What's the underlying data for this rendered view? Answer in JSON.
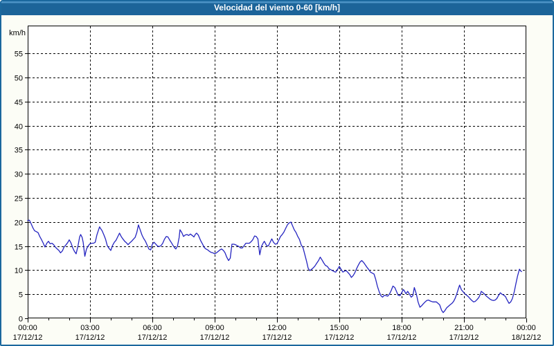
{
  "window": {
    "title": "Velocidad del viento 0-60 [km/h]"
  },
  "colors": {
    "titlebar_bg": "#1c6499",
    "titlebar_highlight": "#4c93c6",
    "window_border": "#1b689e",
    "window_bg": "#fcfdf6",
    "plot_bg": "#ffffff",
    "axis_and_grid": "#000000",
    "series_line": "#2424c0",
    "title_text": "#ffffff"
  },
  "chart_data": {
    "type": "line",
    "title": "Velocidad del viento 0-60 [km/h]",
    "ylabel": "km/h",
    "xlabel": "",
    "ylim": [
      0,
      60.8
    ],
    "xlim_hours": [
      0,
      24
    ],
    "y_ticks": [
      0,
      5,
      10,
      15,
      20,
      25,
      30,
      35,
      40,
      45,
      50,
      55
    ],
    "x_ticks": [
      {
        "hour": 0,
        "time": "00:00",
        "date": "17/12/12"
      },
      {
        "hour": 3,
        "time": "03:00",
        "date": "17/12/12"
      },
      {
        "hour": 6,
        "time": "06:00",
        "date": "17/12/12"
      },
      {
        "hour": 9,
        "time": "09:00",
        "date": "17/12/12"
      },
      {
        "hour": 12,
        "time": "12:00",
        "date": "17/12/12"
      },
      {
        "hour": 15,
        "time": "15:00",
        "date": "17/12/12"
      },
      {
        "hour": 18,
        "time": "18:00",
        "date": "17/12/12"
      },
      {
        "hour": 21,
        "time": "21:00",
        "date": "17/12/12"
      },
      {
        "hour": 24,
        "time": "00:00",
        "date": "18/12/12"
      }
    ],
    "minor_x_tick_every_hours": 1,
    "grid": "dashed",
    "legend": "none",
    "series": [
      {
        "name": "velocidad_del_viento_kmh",
        "color": "#2424c0",
        "points": [
          [
            0.0,
            20.3
          ],
          [
            0.08,
            20.4
          ],
          [
            0.17,
            19.6
          ],
          [
            0.25,
            18.8
          ],
          [
            0.33,
            18.2
          ],
          [
            0.42,
            18.0
          ],
          [
            0.5,
            17.8
          ],
          [
            0.58,
            17.0
          ],
          [
            0.67,
            16.3
          ],
          [
            0.75,
            15.6
          ],
          [
            0.83,
            14.8
          ],
          [
            0.92,
            15.6
          ],
          [
            1.0,
            16.0
          ],
          [
            1.08,
            15.5
          ],
          [
            1.17,
            15.6
          ],
          [
            1.25,
            15.3
          ],
          [
            1.33,
            14.8
          ],
          [
            1.42,
            14.4
          ],
          [
            1.5,
            14.1
          ],
          [
            1.58,
            13.6
          ],
          [
            1.67,
            14.0
          ],
          [
            1.75,
            14.8
          ],
          [
            1.83,
            15.2
          ],
          [
            1.92,
            15.7
          ],
          [
            2.0,
            16.3
          ],
          [
            2.08,
            15.7
          ],
          [
            2.17,
            14.6
          ],
          [
            2.25,
            13.9
          ],
          [
            2.33,
            13.4
          ],
          [
            2.42,
            15.0
          ],
          [
            2.5,
            16.9
          ],
          [
            2.55,
            17.4
          ],
          [
            2.62,
            16.8
          ],
          [
            2.67,
            15.8
          ],
          [
            2.75,
            12.9
          ],
          [
            2.83,
            14.4
          ],
          [
            2.92,
            15.1
          ],
          [
            3.0,
            15.5
          ],
          [
            3.08,
            15.6
          ],
          [
            3.17,
            15.6
          ],
          [
            3.25,
            15.8
          ],
          [
            3.33,
            17.3
          ],
          [
            3.42,
            18.5
          ],
          [
            3.46,
            19.0
          ],
          [
            3.5,
            18.7
          ],
          [
            3.58,
            18.2
          ],
          [
            3.67,
            17.3
          ],
          [
            3.75,
            16.4
          ],
          [
            3.83,
            15.1
          ],
          [
            3.92,
            14.5
          ],
          [
            4.0,
            14.1
          ],
          [
            4.08,
            15.1
          ],
          [
            4.17,
            15.8
          ],
          [
            4.25,
            16.2
          ],
          [
            4.33,
            16.9
          ],
          [
            4.42,
            17.7
          ],
          [
            4.5,
            17.0
          ],
          [
            4.58,
            16.5
          ],
          [
            4.67,
            16.0
          ],
          [
            4.75,
            15.7
          ],
          [
            4.83,
            15.3
          ],
          [
            4.92,
            15.7
          ],
          [
            5.0,
            16.0
          ],
          [
            5.08,
            16.4
          ],
          [
            5.17,
            16.8
          ],
          [
            5.25,
            17.8
          ],
          [
            5.33,
            19.4
          ],
          [
            5.42,
            18.3
          ],
          [
            5.5,
            17.3
          ],
          [
            5.58,
            16.6
          ],
          [
            5.67,
            16.0
          ],
          [
            5.75,
            15.2
          ],
          [
            5.83,
            14.4
          ],
          [
            5.92,
            14.2
          ],
          [
            6.0,
            15.4
          ],
          [
            6.08,
            15.8
          ],
          [
            6.17,
            15.4
          ],
          [
            6.25,
            15.0
          ],
          [
            6.33,
            14.9
          ],
          [
            6.42,
            15.1
          ],
          [
            6.5,
            15.6
          ],
          [
            6.58,
            16.4
          ],
          [
            6.67,
            17.0
          ],
          [
            6.75,
            16.9
          ],
          [
            6.83,
            16.3
          ],
          [
            6.92,
            15.7
          ],
          [
            7.0,
            15.1
          ],
          [
            7.08,
            14.6
          ],
          [
            7.13,
            14.4
          ],
          [
            7.21,
            15.0
          ],
          [
            7.29,
            16.8
          ],
          [
            7.33,
            18.4
          ],
          [
            7.42,
            17.8
          ],
          [
            7.5,
            17.0
          ],
          [
            7.58,
            17.3
          ],
          [
            7.67,
            17.4
          ],
          [
            7.75,
            17.2
          ],
          [
            7.83,
            17.5
          ],
          [
            7.92,
            17.2
          ],
          [
            8.0,
            16.9
          ],
          [
            8.08,
            17.5
          ],
          [
            8.13,
            17.7
          ],
          [
            8.21,
            17.3
          ],
          [
            8.33,
            16.1
          ],
          [
            8.42,
            15.4
          ],
          [
            8.5,
            14.7
          ],
          [
            8.58,
            14.4
          ],
          [
            8.67,
            14.2
          ],
          [
            8.75,
            13.9
          ],
          [
            8.83,
            13.7
          ],
          [
            8.92,
            13.6
          ],
          [
            9.0,
            13.4
          ],
          [
            9.08,
            13.6
          ],
          [
            9.17,
            13.9
          ],
          [
            9.25,
            14.2
          ],
          [
            9.33,
            14.4
          ],
          [
            9.42,
            14.1
          ],
          [
            9.5,
            13.6
          ],
          [
            9.58,
            12.7
          ],
          [
            9.67,
            12.0
          ],
          [
            9.75,
            12.5
          ],
          [
            9.83,
            15.4
          ],
          [
            9.92,
            15.4
          ],
          [
            10.0,
            15.3
          ],
          [
            10.08,
            15.1
          ],
          [
            10.17,
            14.9
          ],
          [
            10.25,
            14.6
          ],
          [
            10.33,
            14.6
          ],
          [
            10.42,
            15.1
          ],
          [
            10.5,
            15.6
          ],
          [
            10.58,
            15.6
          ],
          [
            10.67,
            15.6
          ],
          [
            10.75,
            15.9
          ],
          [
            10.83,
            16.3
          ],
          [
            10.92,
            17.1
          ],
          [
            11.0,
            17.0
          ],
          [
            11.08,
            16.5
          ],
          [
            11.17,
            13.2
          ],
          [
            11.25,
            14.9
          ],
          [
            11.33,
            15.6
          ],
          [
            11.39,
            16.0
          ],
          [
            11.5,
            15.1
          ],
          [
            11.58,
            15.0
          ],
          [
            11.67,
            15.8
          ],
          [
            11.75,
            16.5
          ],
          [
            11.83,
            15.8
          ],
          [
            11.92,
            15.4
          ],
          [
            12.0,
            15.5
          ],
          [
            12.08,
            16.2
          ],
          [
            12.17,
            17.0
          ],
          [
            12.25,
            17.4
          ],
          [
            12.33,
            17.9
          ],
          [
            12.42,
            18.7
          ],
          [
            12.5,
            19.4
          ],
          [
            12.58,
            19.8
          ],
          [
            12.67,
            20.0
          ],
          [
            12.75,
            19.2
          ],
          [
            12.83,
            18.4
          ],
          [
            12.92,
            17.8
          ],
          [
            13.0,
            17.0
          ],
          [
            13.08,
            16.4
          ],
          [
            13.17,
            15.2
          ],
          [
            13.25,
            14.7
          ],
          [
            13.33,
            13.4
          ],
          [
            13.42,
            11.9
          ],
          [
            13.5,
            10.4
          ],
          [
            13.58,
            9.9
          ],
          [
            13.67,
            10.2
          ],
          [
            13.75,
            10.5
          ],
          [
            13.83,
            10.9
          ],
          [
            13.92,
            11.5
          ],
          [
            14.0,
            12.0
          ],
          [
            14.08,
            12.7
          ],
          [
            14.17,
            12.1
          ],
          [
            14.25,
            11.5
          ],
          [
            14.33,
            11.0
          ],
          [
            14.42,
            10.8
          ],
          [
            14.5,
            10.3
          ],
          [
            14.58,
            10.1
          ],
          [
            14.67,
            9.9
          ],
          [
            14.75,
            9.7
          ],
          [
            14.83,
            9.6
          ],
          [
            14.92,
            10.2
          ],
          [
            15.0,
            10.8
          ],
          [
            15.08,
            10.2
          ],
          [
            15.17,
            9.6
          ],
          [
            15.25,
            9.8
          ],
          [
            15.33,
            9.9
          ],
          [
            15.42,
            9.5
          ],
          [
            15.5,
            9.1
          ],
          [
            15.58,
            8.5
          ],
          [
            15.67,
            8.9
          ],
          [
            15.75,
            9.5
          ],
          [
            15.83,
            10.3
          ],
          [
            15.92,
            11.1
          ],
          [
            16.0,
            11.7
          ],
          [
            16.08,
            12.0
          ],
          [
            16.17,
            11.6
          ],
          [
            16.25,
            11.1
          ],
          [
            16.33,
            10.6
          ],
          [
            16.42,
            10.1
          ],
          [
            16.5,
            9.6
          ],
          [
            16.58,
            9.4
          ],
          [
            16.67,
            9.2
          ],
          [
            16.75,
            8.1
          ],
          [
            16.83,
            6.7
          ],
          [
            16.92,
            5.5
          ],
          [
            17.0,
            4.7
          ],
          [
            17.08,
            4.4
          ],
          [
            17.17,
            4.8
          ],
          [
            17.25,
            4.7
          ],
          [
            17.33,
            4.6
          ],
          [
            17.42,
            5.1
          ],
          [
            17.5,
            5.8
          ],
          [
            17.58,
            6.7
          ],
          [
            17.67,
            6.4
          ],
          [
            17.75,
            5.6
          ],
          [
            17.83,
            4.8
          ],
          [
            17.92,
            4.7
          ],
          [
            18.0,
            5.3
          ],
          [
            18.08,
            6.0
          ],
          [
            18.13,
            5.7
          ],
          [
            18.21,
            5.1
          ],
          [
            18.29,
            5.6
          ],
          [
            18.38,
            5.0
          ],
          [
            18.46,
            4.4
          ],
          [
            18.54,
            4.7
          ],
          [
            18.61,
            6.4
          ],
          [
            18.71,
            5.0
          ],
          [
            18.79,
            3.4
          ],
          [
            18.88,
            2.3
          ],
          [
            18.96,
            2.6
          ],
          [
            19.04,
            3.0
          ],
          [
            19.13,
            3.4
          ],
          [
            19.21,
            3.7
          ],
          [
            19.29,
            3.8
          ],
          [
            19.38,
            3.6
          ],
          [
            19.5,
            3.4
          ],
          [
            19.58,
            3.4
          ],
          [
            19.67,
            3.4
          ],
          [
            19.75,
            3.1
          ],
          [
            19.83,
            2.8
          ],
          [
            19.92,
            1.7
          ],
          [
            20.0,
            1.2
          ],
          [
            20.08,
            1.6
          ],
          [
            20.17,
            2.2
          ],
          [
            20.25,
            2.5
          ],
          [
            20.33,
            2.8
          ],
          [
            20.42,
            3.1
          ],
          [
            20.5,
            3.5
          ],
          [
            20.58,
            4.2
          ],
          [
            20.67,
            5.3
          ],
          [
            20.75,
            6.4
          ],
          [
            20.79,
            6.9
          ],
          [
            20.88,
            5.9
          ],
          [
            20.96,
            5.5
          ],
          [
            21.04,
            5.1
          ],
          [
            21.13,
            4.8
          ],
          [
            21.21,
            4.5
          ],
          [
            21.29,
            4.1
          ],
          [
            21.38,
            3.7
          ],
          [
            21.46,
            3.4
          ],
          [
            21.54,
            3.5
          ],
          [
            21.63,
            3.9
          ],
          [
            21.71,
            4.3
          ],
          [
            21.79,
            5.0
          ],
          [
            21.83,
            5.6
          ],
          [
            21.92,
            5.3
          ],
          [
            22.0,
            5.0
          ],
          [
            22.08,
            4.6
          ],
          [
            22.17,
            4.3
          ],
          [
            22.25,
            4.0
          ],
          [
            22.33,
            3.8
          ],
          [
            22.42,
            3.7
          ],
          [
            22.5,
            3.8
          ],
          [
            22.58,
            4.1
          ],
          [
            22.67,
            4.8
          ],
          [
            22.75,
            5.3
          ],
          [
            22.83,
            5.0
          ],
          [
            22.92,
            4.8
          ],
          [
            23.0,
            4.5
          ],
          [
            23.08,
            3.8
          ],
          [
            23.17,
            3.1
          ],
          [
            23.25,
            3.4
          ],
          [
            23.33,
            4.1
          ],
          [
            23.42,
            5.5
          ],
          [
            23.5,
            7.2
          ],
          [
            23.58,
            8.8
          ],
          [
            23.67,
            10.2
          ],
          [
            23.72,
            9.9
          ],
          [
            23.77,
            9.7
          ]
        ]
      }
    ]
  }
}
